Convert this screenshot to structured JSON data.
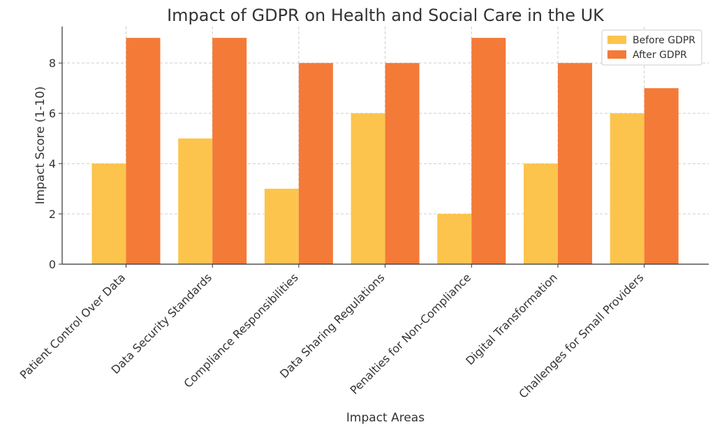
{
  "chart_data": {
    "type": "bar",
    "title": "Impact of GDPR on Health and Social Care in the UK",
    "xlabel": "Impact Areas",
    "ylabel": "Impact Score (1-10)",
    "ylim": [
      0,
      9.45
    ],
    "yticks": [
      0,
      2,
      4,
      6,
      8
    ],
    "grid": true,
    "legend_position": "top-right",
    "categories": [
      "Patient Control Over Data",
      "Data Security Standards",
      "Compliance Responsibilities",
      "Data Sharing Regulations",
      "Penalties for Non-Compliance",
      "Digital Transformation",
      "Challenges for Small Providers"
    ],
    "series": [
      {
        "name": "Before GDPR",
        "color": "#FCC44D",
        "values": [
          4,
          5,
          3,
          6,
          2,
          4,
          6
        ]
      },
      {
        "name": "After GDPR",
        "color": "#F47A38",
        "values": [
          9,
          9,
          8,
          8,
          9,
          8,
          7
        ]
      }
    ]
  }
}
